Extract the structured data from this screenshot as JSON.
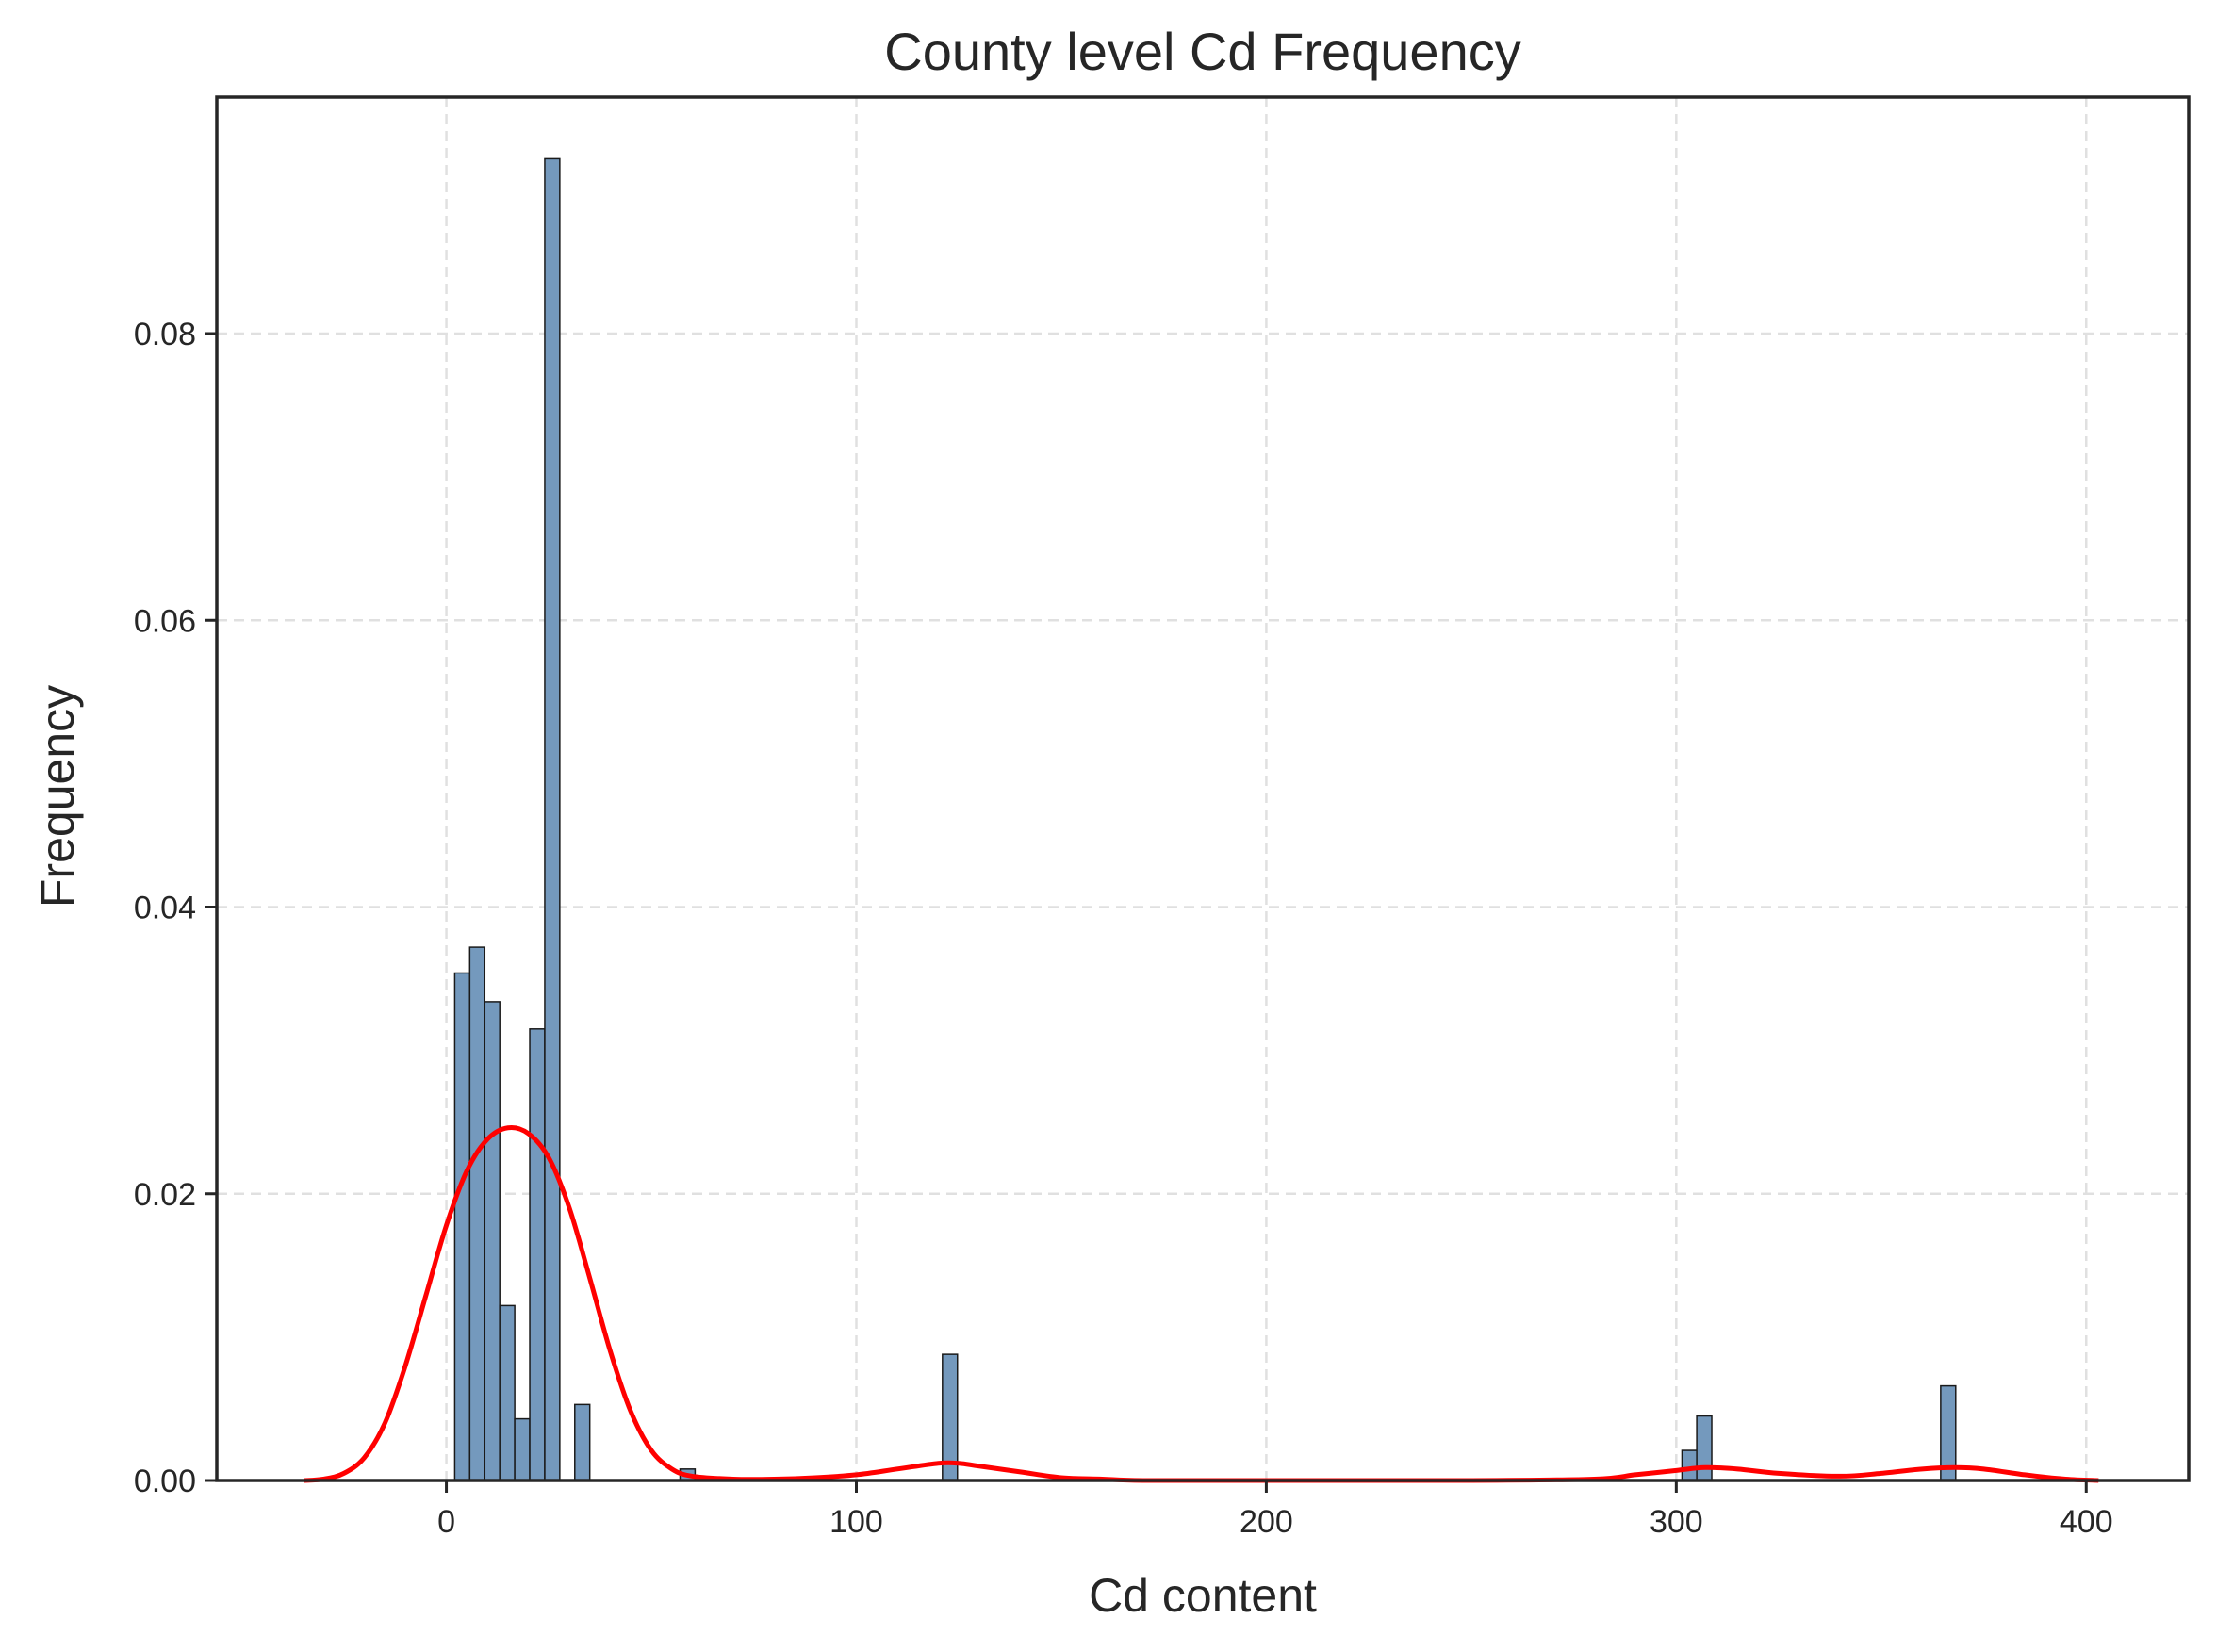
{
  "chart_data": {
    "type": "bar",
    "title": "County level Cd Frequency",
    "xlabel": "Cd content",
    "ylabel": "Frequency",
    "xlim": [
      -56,
      425
    ],
    "ylim": [
      0,
      0.0965
    ],
    "xticks": [
      0,
      100,
      200,
      300,
      400
    ],
    "yticks": [
      0.0,
      0.02,
      0.04,
      0.06,
      0.08
    ],
    "xtick_labels": [
      "0",
      "100",
      "200",
      "300",
      "400"
    ],
    "ytick_labels": [
      "0.00",
      "0.02",
      "0.04",
      "0.06",
      "0.08"
    ],
    "grid": true,
    "legend": "none",
    "bin_width": 3.66,
    "bins": [
      {
        "x": 2.04,
        "value": 0.0354
      },
      {
        "x": 5.7,
        "value": 0.0372
      },
      {
        "x": 9.36,
        "value": 0.0334
      },
      {
        "x": 13.02,
        "value": 0.0122
      },
      {
        "x": 16.68,
        "value": 0.0043
      },
      {
        "x": 20.34,
        "value": 0.0315
      },
      {
        "x": 24.0,
        "value": 0.0922
      },
      {
        "x": 31.32,
        "value": 0.0053
      },
      {
        "x": 57.0,
        "value": 0.0008
      },
      {
        "x": 121.0,
        "value": 0.0088
      },
      {
        "x": 301.4,
        "value": 0.0021
      },
      {
        "x": 305.0,
        "value": 0.0045
      },
      {
        "x": 364.5,
        "value": 0.0066
      }
    ],
    "kde": [
      [
        -34.78,
        0.0
      ],
      [
        -30,
        0.0001
      ],
      [
        -25,
        0.0005
      ],
      [
        -20,
        0.0016
      ],
      [
        -15,
        0.004
      ],
      [
        -10,
        0.008
      ],
      [
        -5,
        0.0129
      ],
      [
        0,
        0.0178
      ],
      [
        5,
        0.0216
      ],
      [
        10,
        0.0238
      ],
      [
        15,
        0.0246
      ],
      [
        20,
        0.0242
      ],
      [
        25,
        0.0225
      ],
      [
        30,
        0.019
      ],
      [
        35,
        0.0141
      ],
      [
        40,
        0.009
      ],
      [
        45,
        0.0048
      ],
      [
        50,
        0.0021
      ],
      [
        55,
        0.0008
      ],
      [
        60,
        0.0003
      ],
      [
        70,
        0.0001
      ],
      [
        80,
        0.0001
      ],
      [
        90,
        0.0002
      ],
      [
        100,
        0.0004
      ],
      [
        110,
        0.0008
      ],
      [
        120,
        0.0012
      ],
      [
        125,
        0.0012
      ],
      [
        130,
        0.001
      ],
      [
        140,
        0.0006
      ],
      [
        150,
        0.0002
      ],
      [
        160,
        0.0001
      ],
      [
        170,
        0.0
      ],
      [
        200,
        0.0
      ],
      [
        250,
        0.0
      ],
      [
        280,
        0.0001
      ],
      [
        290,
        0.0004
      ],
      [
        300,
        0.0007
      ],
      [
        307,
        0.0009
      ],
      [
        315,
        0.0008
      ],
      [
        325,
        0.0005
      ],
      [
        340,
        0.0003
      ],
      [
        350,
        0.0005
      ],
      [
        360,
        0.0008
      ],
      [
        368,
        0.0009
      ],
      [
        375,
        0.0008
      ],
      [
        385,
        0.0004
      ],
      [
        395,
        0.0001
      ],
      [
        403,
        0.0
      ]
    ],
    "colors": {
      "bar_fill": "#7499bd",
      "bar_edge": "#1a1a1a",
      "kde_line": "#ff0000",
      "grid": "#e0e0e0",
      "axes": "#262626"
    }
  }
}
